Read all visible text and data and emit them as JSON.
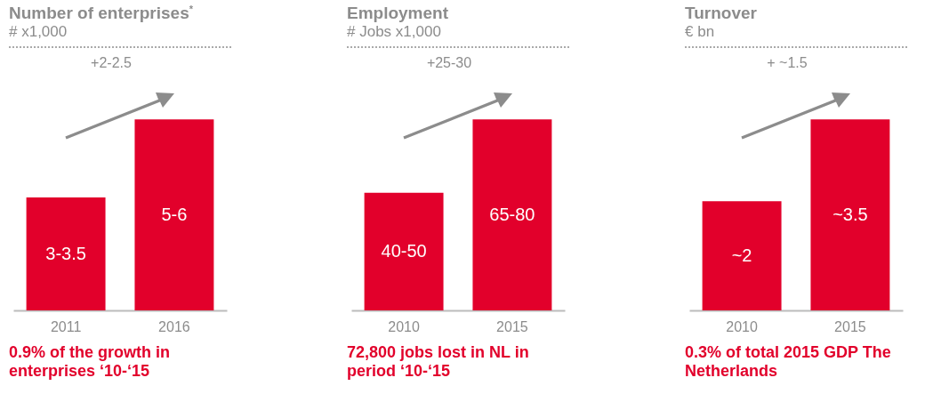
{
  "chart_data": [
    {
      "type": "bar",
      "title": "Number of enterprises$^{*}$",
      "subtitle": "# x1,000",
      "categories": [
        "2011",
        "2016"
      ],
      "values": [
        3.25,
        5.5
      ],
      "value_labels": [
        "3-3.5",
        "5-6"
      ],
      "color": "#e2002b",
      "annotations": [
        "+2-2.5",
        "0.9% of the growth in enterprises ‘10-‘15"
      ]
    },
    {
      "type": "bar",
      "title": "Employment",
      "subtitle": "# Jobs x1,000",
      "categories": [
        "2010",
        "2015"
      ],
      "values": [
        40,
        65
      ],
      "value_labels": [
        "40-50",
        "65-80"
      ],
      "color": "#e2002b",
      "annotations": [
        "+25-30",
        "72,800 jobs lost in NL in period ‘10-‘15"
      ]
    },
    {
      "type": "bar",
      "title": "Turnover",
      "subtitle": "€ bn",
      "categories": [
        "2010",
        "2015"
      ],
      "values": [
        2,
        3.5
      ],
      "value_labels": [
        "~2",
        "~3.5"
      ],
      "color": "#e2002b",
      "annotations": [
        "+ ~1.5",
        "0.3% of total 2015 GDP The Netherlands"
      ]
    }
  ]
}
